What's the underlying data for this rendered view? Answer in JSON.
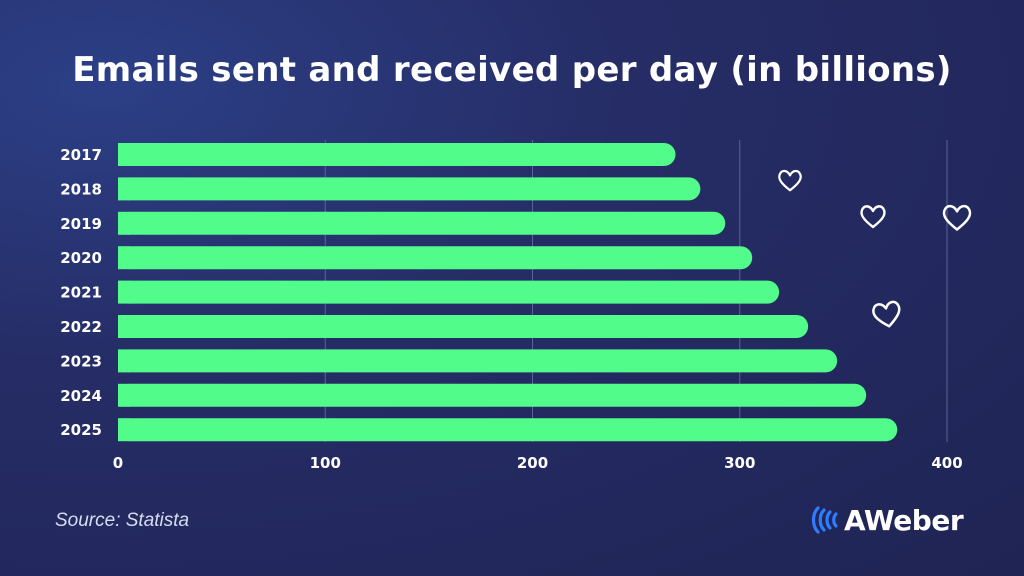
{
  "title": "Emails sent and received per day (in billions)",
  "source": "Source: Statista",
  "brand": {
    "name": "AWeber",
    "icon": "aweber-wave-icon"
  },
  "colors": {
    "bar": "#52fc8a",
    "grid": "#5a6398",
    "text": "#ffffff",
    "brand_icon": "#2f7dff"
  },
  "decorations": [
    "heart-icon",
    "heart-icon",
    "heart-icon",
    "heart-icon"
  ],
  "chart_data": {
    "type": "bar",
    "orientation": "horizontal",
    "categories": [
      "2017",
      "2018",
      "2019",
      "2020",
      "2021",
      "2022",
      "2023",
      "2024",
      "2025"
    ],
    "values": [
      269,
      281,
      293,
      306,
      319,
      333,
      347,
      361,
      376
    ],
    "xlabel": "",
    "ylabel": "",
    "xlim": [
      0,
      400
    ],
    "xticks": [
      0,
      100,
      200,
      300,
      400
    ],
    "grid": true
  }
}
